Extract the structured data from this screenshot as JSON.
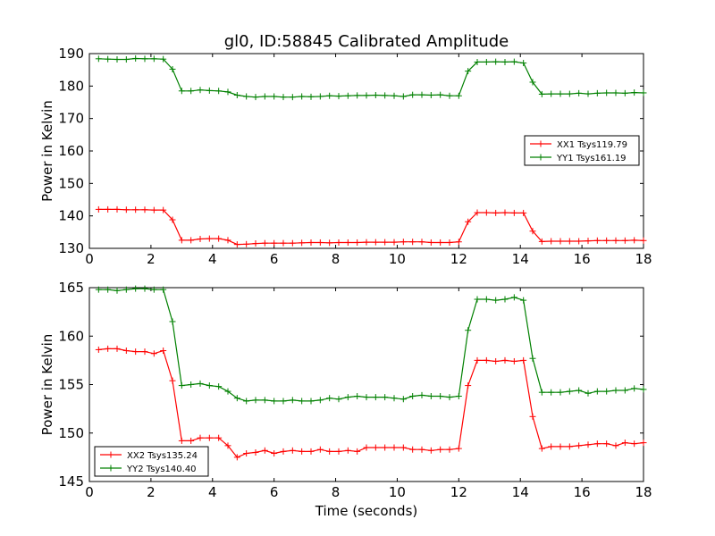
{
  "title": "gl0, ID:58845 Calibrated Amplitude",
  "chart_data": [
    {
      "type": "line",
      "ylabel": "Power in Kelvin",
      "xlabel": "",
      "xlim": [
        0,
        18
      ],
      "ylim": [
        130,
        190
      ],
      "xticks": [
        0,
        2,
        4,
        6,
        8,
        10,
        12,
        14,
        16,
        18
      ],
      "yticks": [
        130,
        140,
        150,
        160,
        170,
        180,
        190
      ],
      "grid": false,
      "legend_position": "right",
      "x": [
        0.3,
        0.6,
        0.9,
        1.2,
        1.5,
        1.8,
        2.1,
        2.4,
        2.7,
        3.0,
        3.3,
        3.6,
        3.9,
        4.2,
        4.5,
        4.8,
        5.1,
        5.4,
        5.7,
        6.0,
        6.3,
        6.6,
        6.9,
        7.2,
        7.5,
        7.8,
        8.1,
        8.4,
        8.7,
        9.0,
        9.3,
        9.6,
        9.9,
        10.2,
        10.5,
        10.8,
        11.1,
        11.4,
        11.7,
        12.0,
        12.3,
        12.6,
        12.9,
        13.2,
        13.5,
        13.8,
        14.1,
        14.4,
        14.7,
        15.0,
        15.3,
        15.6,
        15.9,
        16.2,
        16.5,
        16.8,
        17.1,
        17.4,
        17.7,
        18.0
      ],
      "series": [
        {
          "name": "XX1 Tsys119.79",
          "color": "#ff0000",
          "values": [
            142.0,
            142.0,
            142.0,
            141.9,
            141.9,
            141.9,
            141.8,
            141.8,
            138.8,
            132.5,
            132.5,
            132.9,
            133.0,
            133.0,
            132.5,
            131.2,
            131.3,
            131.5,
            131.6,
            131.6,
            131.6,
            131.6,
            131.7,
            131.8,
            131.8,
            131.7,
            131.8,
            131.8,
            131.8,
            131.9,
            131.9,
            131.9,
            131.9,
            132.0,
            132.0,
            132.0,
            131.8,
            131.8,
            131.8,
            132.0,
            138.2,
            141.0,
            141.0,
            140.9,
            141.0,
            140.9,
            140.9,
            135.3,
            132.1,
            132.2,
            132.2,
            132.2,
            132.2,
            132.3,
            132.4,
            132.4,
            132.4,
            132.4,
            132.5,
            132.4
          ]
        },
        {
          "name": "YY1 Tsys161.19",
          "color": "#008000",
          "values": [
            188.4,
            188.3,
            188.2,
            188.2,
            188.5,
            188.4,
            188.4,
            188.3,
            185.2,
            178.5,
            178.5,
            178.8,
            178.6,
            178.5,
            178.2,
            177.2,
            176.8,
            176.6,
            176.8,
            176.8,
            176.6,
            176.6,
            176.8,
            176.7,
            176.8,
            177.0,
            176.9,
            177.0,
            177.1,
            177.1,
            177.2,
            177.1,
            177.0,
            176.8,
            177.3,
            177.3,
            177.2,
            177.3,
            177.0,
            177.0,
            184.6,
            187.4,
            187.4,
            187.5,
            187.4,
            187.5,
            187.1,
            181.2,
            177.5,
            177.6,
            177.6,
            177.6,
            177.8,
            177.6,
            177.8,
            177.9,
            177.9,
            177.8,
            178.0,
            177.9
          ]
        }
      ]
    },
    {
      "type": "line",
      "ylabel": "Power in Kelvin",
      "xlabel": "Time (seconds)",
      "xlim": [
        0,
        18
      ],
      "ylim": [
        145,
        165
      ],
      "xticks": [
        0,
        2,
        4,
        6,
        8,
        10,
        12,
        14,
        16,
        18
      ],
      "yticks": [
        145,
        150,
        155,
        160,
        165
      ],
      "grid": false,
      "legend_position": "bottom-left",
      "x": [
        0.3,
        0.6,
        0.9,
        1.2,
        1.5,
        1.8,
        2.1,
        2.4,
        2.7,
        3.0,
        3.3,
        3.6,
        3.9,
        4.2,
        4.5,
        4.8,
        5.1,
        5.4,
        5.7,
        6.0,
        6.3,
        6.6,
        6.9,
        7.2,
        7.5,
        7.8,
        8.1,
        8.4,
        8.7,
        9.0,
        9.3,
        9.6,
        9.9,
        10.2,
        10.5,
        10.8,
        11.1,
        11.4,
        11.7,
        12.0,
        12.3,
        12.6,
        12.9,
        13.2,
        13.5,
        13.8,
        14.1,
        14.4,
        14.7,
        15.0,
        15.3,
        15.6,
        15.9,
        16.2,
        16.5,
        16.8,
        17.1,
        17.4,
        17.7,
        18.0
      ],
      "series": [
        {
          "name": "XX2 Tsys135.24",
          "color": "#ff0000",
          "values": [
            158.6,
            158.7,
            158.7,
            158.5,
            158.4,
            158.4,
            158.2,
            158.5,
            155.4,
            149.2,
            149.2,
            149.5,
            149.5,
            149.5,
            148.7,
            147.5,
            147.9,
            148.0,
            148.2,
            147.9,
            148.1,
            148.2,
            148.1,
            148.1,
            148.3,
            148.1,
            148.1,
            148.2,
            148.1,
            148.5,
            148.5,
            148.5,
            148.5,
            148.5,
            148.3,
            148.3,
            148.2,
            148.3,
            148.3,
            148.4,
            154.9,
            157.5,
            157.5,
            157.4,
            157.5,
            157.4,
            157.5,
            151.7,
            148.4,
            148.6,
            148.6,
            148.6,
            148.7,
            148.8,
            148.9,
            148.9,
            148.7,
            149.0,
            148.9,
            149.0
          ]
        },
        {
          "name": "YY2 Tsys140.40",
          "color": "#008000",
          "values": [
            164.8,
            164.8,
            164.7,
            164.8,
            164.9,
            164.9,
            164.8,
            164.8,
            161.5,
            154.9,
            155.0,
            155.1,
            154.9,
            154.8,
            154.3,
            153.6,
            153.3,
            153.4,
            153.4,
            153.3,
            153.3,
            153.4,
            153.3,
            153.3,
            153.4,
            153.6,
            153.5,
            153.7,
            153.8,
            153.7,
            153.7,
            153.7,
            153.6,
            153.5,
            153.8,
            153.9,
            153.8,
            153.8,
            153.7,
            153.8,
            160.6,
            163.8,
            163.8,
            163.7,
            163.8,
            164.0,
            163.7,
            157.7,
            154.2,
            154.2,
            154.2,
            154.3,
            154.4,
            154.1,
            154.3,
            154.3,
            154.4,
            154.4,
            154.6,
            154.5
          ]
        }
      ]
    }
  ]
}
